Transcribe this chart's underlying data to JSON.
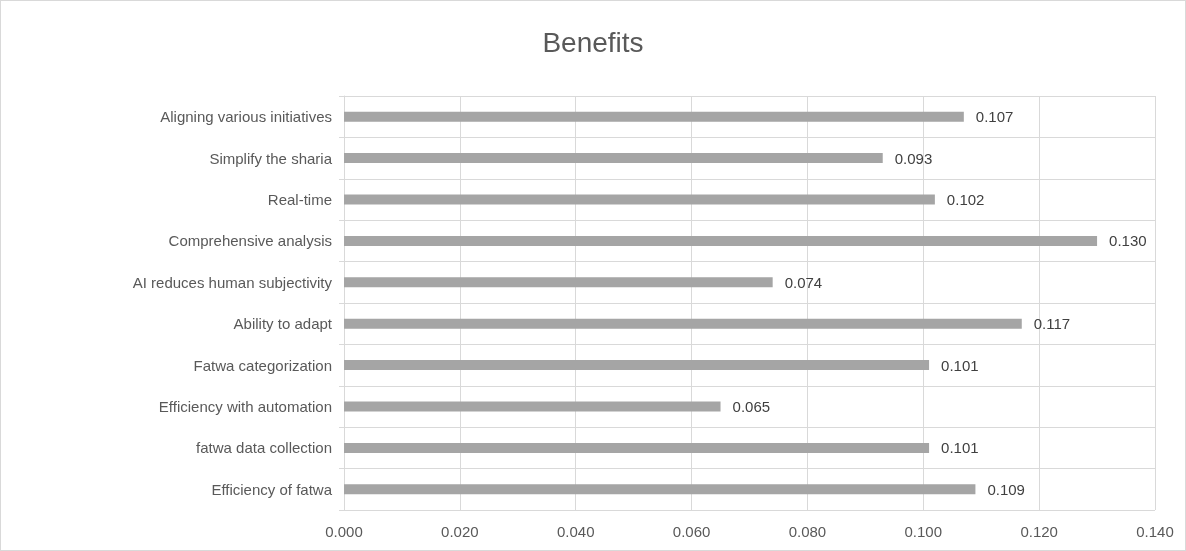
{
  "chart_data": {
    "type": "bar",
    "orientation": "horizontal",
    "title": "Benefits",
    "categories": [
      "Aligning various initiatives",
      "Simplify the sharia",
      "Real-time",
      "Comprehensive analysis",
      "AI reduces human subjectivity",
      "Ability to adapt",
      "Fatwa categorization",
      "Efficiency with automation",
      "fatwa data collection",
      "Efficiency of fatwa"
    ],
    "values": [
      0.107,
      0.093,
      0.102,
      0.13,
      0.074,
      0.117,
      0.101,
      0.065,
      0.101,
      0.109
    ],
    "color": "#a5a5a5",
    "xlim": [
      0,
      0.14
    ],
    "xticks": [
      {
        "value": 0,
        "label": "0.000"
      },
      {
        "value": 0.02,
        "label": "0.020"
      },
      {
        "value": 0.04,
        "label": "0.040"
      },
      {
        "value": 0.06,
        "label": "0.060"
      },
      {
        "value": 0.08,
        "label": "0.080"
      },
      {
        "value": 0.1,
        "label": "0.100"
      },
      {
        "value": 0.12,
        "label": "0.120"
      },
      {
        "value": 0.14,
        "label": "0.140"
      }
    ],
    "value_labels": [
      "0.107",
      "0.093",
      "0.102",
      "0.130",
      "0.074",
      "0.117",
      "0.101",
      "0.065",
      "0.101",
      "0.109"
    ],
    "grid": true
  }
}
